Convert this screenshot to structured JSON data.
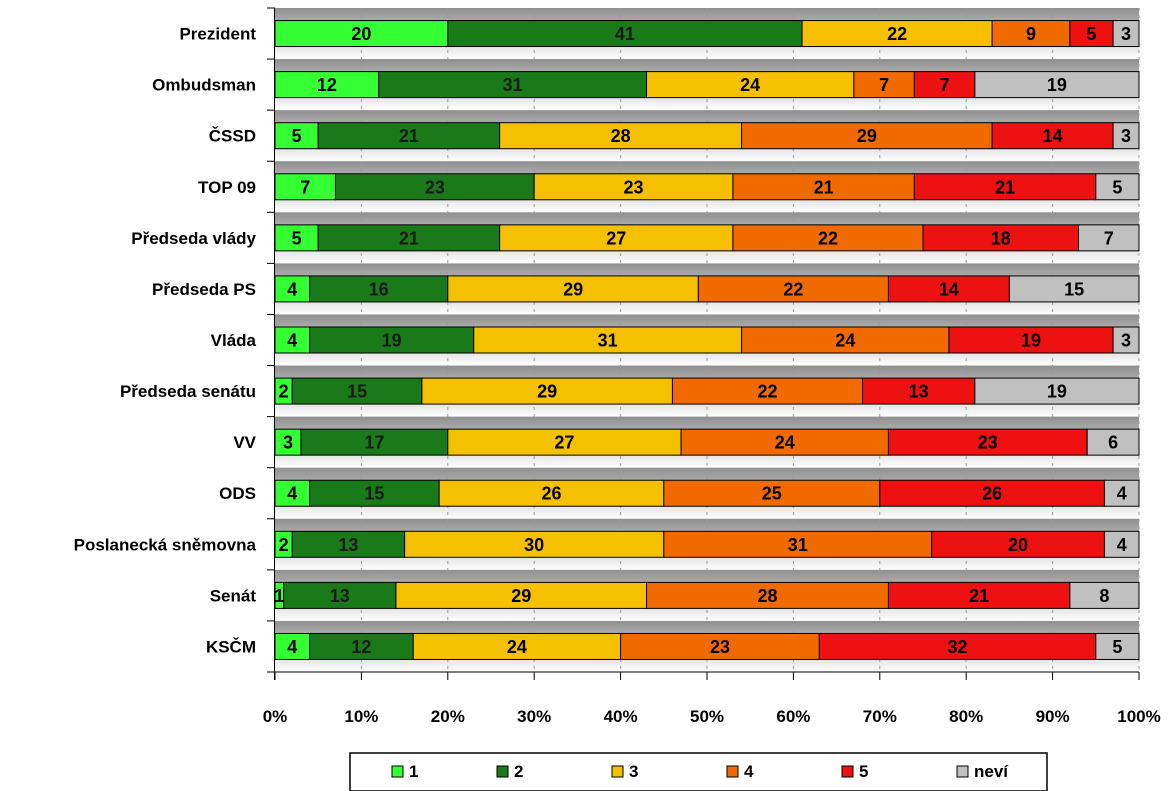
{
  "chart_data": {
    "type": "bar",
    "orientation": "horizontal",
    "stacked": "percent",
    "categories": [
      "Prezident",
      "Ombudsman",
      "ČSSD",
      "TOP 09",
      "Předseda vlády",
      "Předseda PS",
      "Vláda",
      "Předseda senátu",
      "VV",
      "ODS",
      "Poslanecká sněmovna",
      "Senát",
      "KSČM"
    ],
    "series": [
      {
        "name": "1",
        "color": "#33ff33",
        "values": [
          20,
          12,
          5,
          7,
          5,
          4,
          4,
          2,
          3,
          4,
          2,
          1,
          4
        ]
      },
      {
        "name": "2",
        "color": "#1a7a1a",
        "values": [
          41,
          31,
          21,
          23,
          21,
          16,
          19,
          15,
          17,
          15,
          13,
          13,
          12
        ]
      },
      {
        "name": "3",
        "color": "#f5c000",
        "values": [
          22,
          24,
          28,
          23,
          27,
          29,
          31,
          29,
          27,
          26,
          30,
          29,
          24
        ]
      },
      {
        "name": "4",
        "color": "#f06a00",
        "values": [
          9,
          7,
          29,
          21,
          22,
          22,
          24,
          22,
          24,
          25,
          31,
          28,
          23
        ]
      },
      {
        "name": "5",
        "color": "#ee1111",
        "values": [
          5,
          7,
          14,
          21,
          18,
          14,
          19,
          13,
          23,
          26,
          20,
          21,
          32
        ]
      },
      {
        "name": "neví",
        "color": "#c0c0c0",
        "values": [
          3,
          19,
          3,
          5,
          7,
          15,
          3,
          19,
          6,
          4,
          4,
          8,
          5
        ]
      }
    ],
    "x_ticks": [
      "0%",
      "10%",
      "20%",
      "30%",
      "40%",
      "50%",
      "60%",
      "70%",
      "80%",
      "90%",
      "100%"
    ],
    "xlim": [
      0,
      100
    ],
    "title": "",
    "xlabel": "",
    "ylabel": "",
    "legend_position": "bottom",
    "grid": true,
    "band_colors": [
      "#a0a0a0",
      "#ffffff"
    ]
  }
}
